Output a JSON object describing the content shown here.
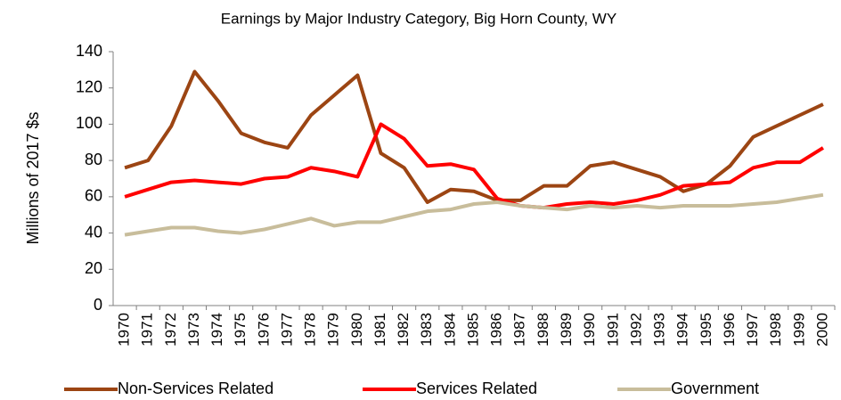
{
  "chart_data": {
    "type": "line",
    "title": "Earnings by Major Industry Category, Big Horn County, WY",
    "y_label": "Millions of 2017 $s",
    "categories": [
      "1970",
      "1971",
      "1972",
      "1973",
      "1974",
      "1975",
      "1976",
      "1977",
      "1978",
      "1979",
      "1980",
      "1981",
      "1982",
      "1983",
      "1984",
      "1985",
      "1986",
      "1987",
      "1988",
      "1989",
      "1990",
      "1991",
      "1992",
      "1993",
      "1994",
      "1995",
      "1996",
      "1997",
      "1998",
      "1999",
      "2000"
    ],
    "series": [
      {
        "name": "Non-Services Related",
        "color": "#9c4513",
        "values": [
          76,
          80,
          99,
          129,
          113,
          95,
          90,
          87,
          105,
          116,
          127,
          84,
          76,
          57,
          64,
          63,
          58,
          58,
          66,
          66,
          77,
          79,
          75,
          71,
          63,
          67,
          77,
          93,
          99,
          105,
          111
        ]
      },
      {
        "name": "Services Related",
        "color": "#ff0000",
        "values": [
          60,
          64,
          68,
          69,
          68,
          67,
          70,
          71,
          76,
          74,
          71,
          100,
          92,
          77,
          78,
          75,
          59,
          55,
          54,
          56,
          57,
          56,
          58,
          61,
          66,
          67,
          68,
          76,
          79,
          79,
          87
        ]
      },
      {
        "name": "Government",
        "color": "#c8bd9b",
        "values": [
          39,
          41,
          43,
          43,
          41,
          40,
          42,
          45,
          48,
          44,
          46,
          46,
          49,
          52,
          53,
          56,
          57,
          55,
          54,
          53,
          55,
          54,
          55,
          54,
          55,
          55,
          55,
          56,
          57,
          59,
          61
        ]
      }
    ],
    "ylim": [
      0,
      140
    ],
    "yticks": [
      0,
      20,
      40,
      60,
      80,
      100,
      120,
      140
    ],
    "grid": false
  }
}
